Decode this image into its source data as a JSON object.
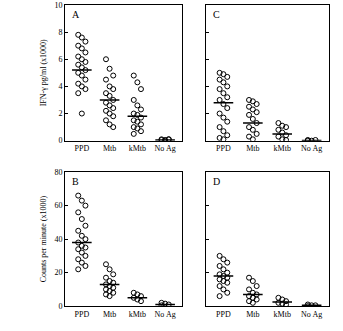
{
  "chart_data": [
    {
      "type": "scatter",
      "title": "A",
      "y_label": "IFN-γ pg/ml (x1000)",
      "categories": [
        "PPD",
        "Mtb",
        "kMtb",
        "No Ag"
      ],
      "values": [
        [
          7.8,
          7.6,
          7.3,
          7.0,
          6.8,
          6.5,
          6.2,
          6.0,
          5.8,
          5.6,
          5.4,
          5.2,
          5.0,
          4.8,
          4.5,
          4.2,
          4.0,
          3.8,
          3.5,
          2.0
        ],
        [
          6.0,
          5.3,
          4.8,
          4.5,
          4.0,
          3.8,
          3.5,
          3.3,
          3.0,
          2.8,
          2.6,
          2.4,
          2.2,
          2.0,
          1.8,
          1.5,
          1.2,
          1.0
        ],
        [
          4.8,
          4.3,
          3.8,
          3.0,
          2.6,
          2.3,
          2.0,
          1.9,
          1.7,
          1.5,
          1.4,
          1.2,
          1.0,
          0.9,
          0.7,
          0.5
        ],
        [
          0.1,
          0.05,
          0.1,
          0.05,
          0.0,
          0.1
        ]
      ],
      "means": [
        5.2,
        3.0,
        1.8,
        0.05
      ],
      "color": "#000000",
      "marker": "circle-open",
      "ylim": [
        0,
        10
      ],
      "yticks": [
        0,
        2,
        4,
        6,
        8,
        10
      ],
      "grid": false
    },
    {
      "type": "scatter",
      "title": "C",
      "categories": [
        "PPD",
        "Mtb",
        "kMtb",
        "No Ag"
      ],
      "values": [
        [
          5.0,
          4.9,
          4.7,
          4.5,
          4.3,
          4.0,
          3.8,
          3.5,
          3.2,
          3.0,
          2.7,
          2.4,
          2.0,
          1.7,
          1.4,
          1.0,
          0.7,
          0.4,
          0.2,
          0.1
        ],
        [
          3.0,
          2.9,
          2.7,
          2.5,
          2.3,
          2.1,
          1.9,
          1.6,
          1.3,
          1.0,
          0.8,
          0.5,
          0.3,
          0.1
        ],
        [
          1.3,
          1.1,
          1.0,
          0.8,
          0.6,
          0.4,
          0.3,
          0.1,
          0.05
        ],
        [
          0.05,
          0,
          0.05,
          0
        ]
      ],
      "means": [
        2.8,
        1.3,
        0.5,
        0.02
      ],
      "color": "#000000",
      "marker": "circle-open",
      "ylim": [
        0,
        10
      ],
      "yticks": [
        0,
        2,
        4,
        6,
        8,
        10
      ],
      "grid": false,
      "tick_labels": "x"
    },
    {
      "type": "scatter",
      "title": "B",
      "y_label": "Counts per minute (x1000)",
      "categories": [
        "PPD",
        "Mtb",
        "kMtb",
        "No Ag"
      ],
      "values": [
        [
          66,
          63,
          60,
          56,
          52,
          48,
          45,
          42,
          40,
          38,
          36,
          35,
          34,
          32,
          30,
          28,
          26,
          24,
          22
        ],
        [
          25,
          22,
          19,
          17,
          15,
          14,
          13,
          12,
          11,
          10,
          9,
          8,
          7,
          6
        ],
        [
          8,
          7,
          6,
          5,
          4,
          3
        ],
        [
          2,
          1.5,
          1,
          0.5
        ]
      ],
      "means": [
        38,
        13,
        5,
        1
      ],
      "color": "#000000",
      "marker": "circle-open",
      "ylim": [
        0,
        80
      ],
      "yticks": [
        0,
        20,
        40,
        60,
        80
      ],
      "grid": false
    },
    {
      "type": "scatter",
      "title": "D",
      "categories": [
        "PPD",
        "Mtb",
        "kMtb",
        "No Ag"
      ],
      "values": [
        [
          30,
          28,
          26,
          24,
          22,
          20,
          19,
          18,
          17,
          16,
          15,
          14,
          12,
          10,
          8,
          6
        ],
        [
          17,
          15,
          12,
          10,
          8,
          7,
          6,
          5,
          4,
          3,
          2
        ],
        [
          5,
          4,
          3,
          2,
          1.5,
          1
        ],
        [
          1,
          0.5,
          0.5,
          0
        ]
      ],
      "means": [
        18,
        7,
        2.5,
        0.5
      ],
      "color": "#000000",
      "marker": "circle-open",
      "ylim": [
        0,
        80
      ],
      "yticks": [
        0,
        20,
        40,
        60,
        80
      ],
      "grid": false,
      "tick_labels": "x"
    }
  ]
}
